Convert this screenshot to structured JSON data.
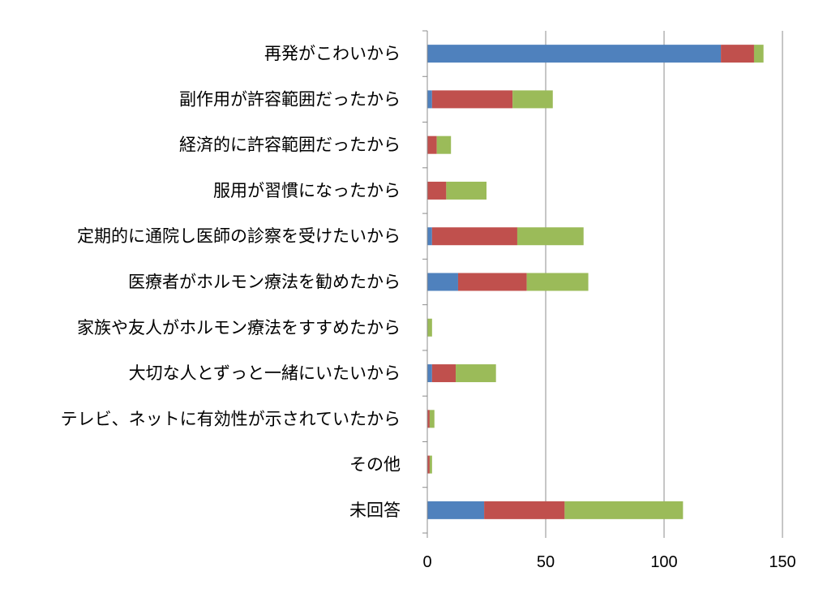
{
  "chart_data": {
    "type": "bar",
    "orientation": "horizontal",
    "stacked": true,
    "categories": [
      "再発がこわいから",
      "副作用が許容範囲だったから",
      "経済的に許容範囲だったから",
      "服用が習慣になったから",
      "定期的に通院し医師の診察を受けたいから",
      "医療者がホルモン療法を勧めたから",
      "家族や友人がホルモン療法をすすめたから",
      "大切な人とずっと一緒にいたいから",
      "テレビ、ネットに有効性が示されていたから",
      "その他",
      "未回答"
    ],
    "series": [
      {
        "color": "#4f81bd",
        "values": [
          124,
          2,
          0,
          0,
          2,
          13,
          0,
          2,
          0,
          0,
          24
        ]
      },
      {
        "color": "#c0504d",
        "values": [
          14,
          34,
          4,
          8,
          36,
          29,
          0,
          10,
          1,
          1,
          34
        ]
      },
      {
        "color": "#9bbb59",
        "values": [
          4,
          17,
          6,
          17,
          28,
          26,
          2,
          17,
          2,
          1,
          50
        ]
      }
    ],
    "xlim": [
      0,
      150
    ],
    "xticks": [
      "0",
      "50",
      "100",
      "150"
    ],
    "xlabel": "",
    "ylabel": "",
    "title": "",
    "grid": "vertical",
    "legend": "none"
  }
}
